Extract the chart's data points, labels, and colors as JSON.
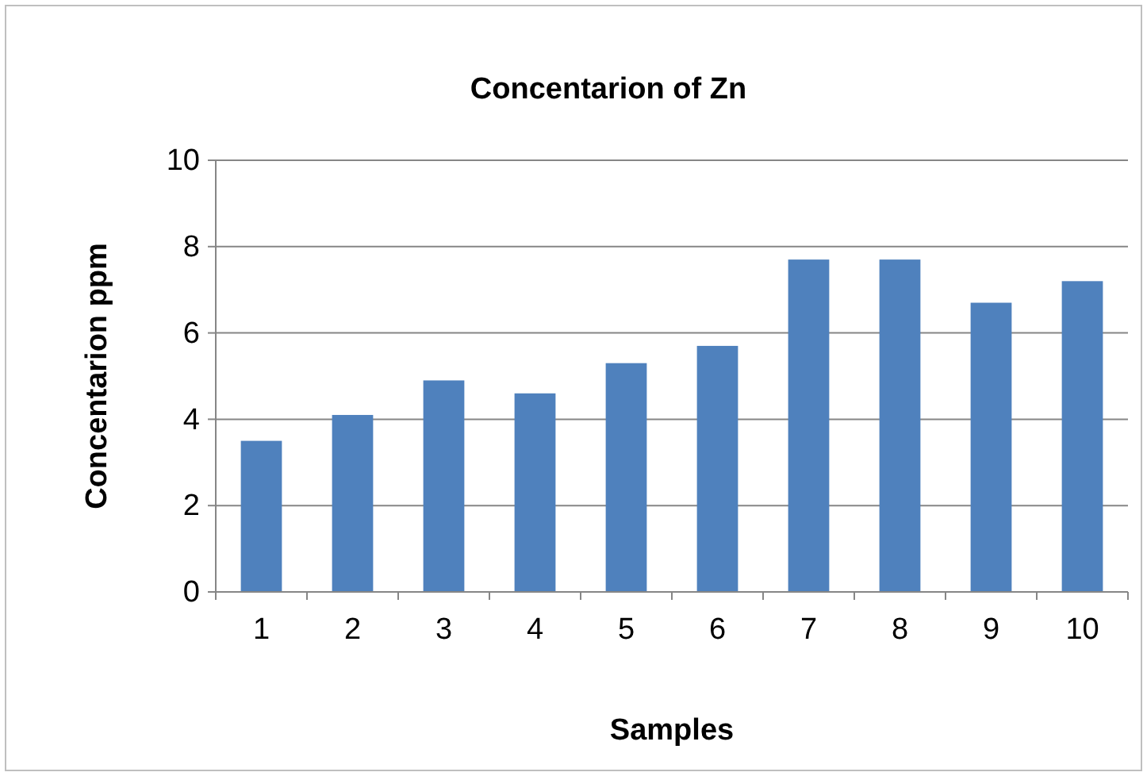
{
  "chart_data": {
    "type": "bar",
    "title": "Concentarion  of Zn",
    "xlabel": "Samples",
    "ylabel": "Concentarion  ppm",
    "categories": [
      "1",
      "2",
      "3",
      "4",
      "5",
      "6",
      "7",
      "8",
      "9",
      "10"
    ],
    "values": [
      3.5,
      4.1,
      4.9,
      4.6,
      5.3,
      5.7,
      7.7,
      7.7,
      6.7,
      7.2
    ],
    "color": "#4f81bd",
    "ylim": [
      0,
      10
    ],
    "yticks": [
      0,
      2,
      4,
      6,
      8,
      10
    ],
    "grid": "y"
  }
}
